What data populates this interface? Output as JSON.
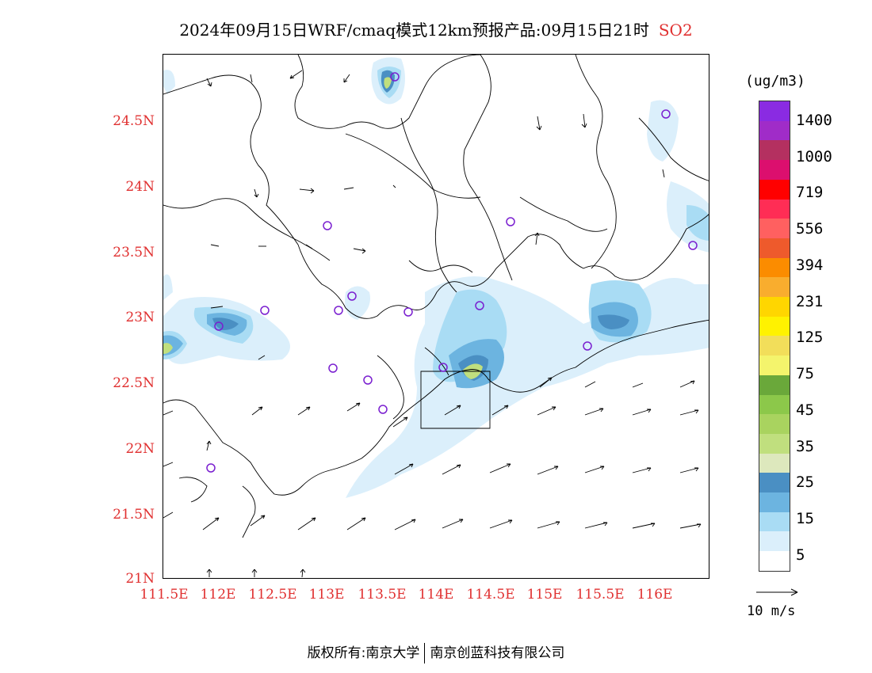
{
  "title": {
    "text": "2024年09月15日WRF/cmaq模式12km预报产品:09月15日21时",
    "pollutant": "SO2"
  },
  "axes": {
    "lat_labels": [
      "24.5N",
      "24N",
      "23.5N",
      "23N",
      "22.5N",
      "22N",
      "21.5N",
      "21N"
    ],
    "lon_labels": [
      "111.5E",
      "112E",
      "112.5E",
      "113E",
      "113.5E",
      "114E",
      "114.5E",
      "115E",
      "115.5E",
      "116E"
    ]
  },
  "legend": {
    "units": "(ug/m3)",
    "colors": [
      "#ffffff",
      "#dbeffb",
      "#a9dcf4",
      "#6cb4e0",
      "#4a8fc3",
      "#dde8bd",
      "#c0df7e",
      "#a9d35f",
      "#8cc84a",
      "#6aa83a",
      "#f4f46c",
      "#f2de5a",
      "#fff200",
      "#ffd600",
      "#f9ad2e",
      "#fb8c00",
      "#ee5a2c",
      "#ff6060",
      "#ff2d55",
      "#ff0000",
      "#dc0f6e",
      "#b43060",
      "#a02cc8",
      "#8a2be2"
    ],
    "labels": [
      "5",
      "15",
      "25",
      "35",
      "45",
      "75",
      "125",
      "231",
      "394",
      "556",
      "719",
      "1000",
      "1400"
    ]
  },
  "wind_reference": {
    "label": "10 m/s"
  },
  "footer": {
    "left": "版权所有:南京大学",
    "right": "南京创蓝科技有限公司"
  }
}
